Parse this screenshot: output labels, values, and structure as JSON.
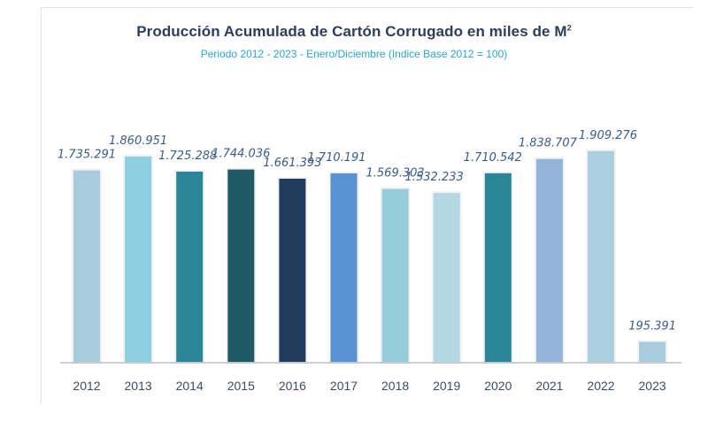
{
  "chart_data": {
    "type": "bar",
    "title": "Producción Acumulada de Cartón Corrugado en miles de M",
    "title_superscript": "2",
    "subtitle": "Periodo 2012 - 2023 - Enero/Diciembre (Indice Base 2012 = 100)",
    "categories": [
      "2012",
      "2013",
      "2014",
      "2015",
      "2016",
      "2017",
      "2018",
      "2019",
      "2020",
      "2021",
      "2022",
      "2023"
    ],
    "values": [
      1735.291,
      1860.951,
      1725.288,
      1744.036,
      1661.393,
      1710.191,
      1569.303,
      1532.233,
      1710.542,
      1838.707,
      1909.276,
      195.391
    ],
    "labels": [
      "1.735.291",
      "1.860.951",
      "1.725.288",
      "1.744.036",
      "1.661.393",
      "1.710.191",
      "1.569.303",
      "1.532.233",
      "1.710.542",
      "1.838.707",
      "1.909.276",
      "195.391"
    ],
    "colors": [
      "#a9ccdc",
      "#8ecfdf",
      "#2b8599",
      "#1e5a66",
      "#213d5e",
      "#5993d3",
      "#95ccdc",
      "#b3d8e4",
      "#2b8599",
      "#93b3d9",
      "#aacfdf",
      "#a9ccdc"
    ],
    "ylim": [
      0,
      2000
    ],
    "grid": false,
    "legend": "none",
    "xlabel": "",
    "ylabel": ""
  }
}
